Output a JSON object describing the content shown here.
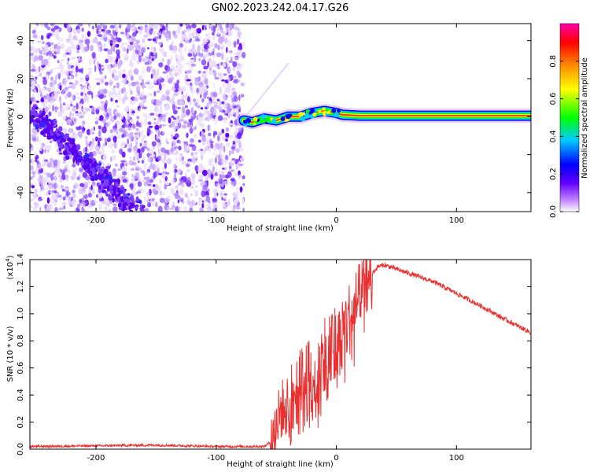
{
  "title": "GN02.2023.242.04.17.G26",
  "colors": {
    "snr_line": "#e83030",
    "colormap": [
      "#ffffff",
      "#cc99ff",
      "#6600ff",
      "#0000ff",
      "#00ffff",
      "#00ff00",
      "#ffff00",
      "#ff8800",
      "#ff0000",
      "#ff00aa"
    ]
  },
  "chart_data": [
    {
      "type": "heatmap",
      "xlabel": "Height of straight line (km)",
      "ylabel": "Frequency (Hz)",
      "xlim": [
        -255,
        162
      ],
      "ylim": [
        -50,
        49
      ],
      "xticks": [
        -200,
        -100,
        0,
        100
      ],
      "yticks": [
        -40,
        -20,
        0,
        20,
        40
      ],
      "colorbar": {
        "label": "Normalized spectral amplitude",
        "range": [
          0.0,
          1.0
        ],
        "ticks": [
          "0.0",
          "0.2",
          "0.4",
          "0.6",
          "0.8"
        ]
      },
      "noise_region_x": [
        -255,
        -77
      ],
      "ridge": {
        "x": [
          -77,
          -70,
          -60,
          -50,
          -40,
          -30,
          -20,
          -10,
          0,
          5,
          20,
          60,
          100,
          162
        ],
        "freq": [
          -2,
          -3,
          -1,
          -2,
          0,
          0,
          2,
          3,
          2,
          1,
          0.5,
          0.5,
          0.5,
          0.5
        ]
      },
      "faint_track": {
        "x": [
          -78,
          -40
        ],
        "freq": [
          -2,
          28
        ]
      },
      "dense_band": {
        "x": [
          -260,
          -165
        ],
        "freq": [
          6,
          -50
        ]
      }
    },
    {
      "type": "line",
      "xlabel": "Height of straight line (km)",
      "ylabel": "SNR (10 * v/v)",
      "yscale_label": "(x10",
      "yscale_exp": "4",
      "xlim": [
        -255,
        162
      ],
      "ylim": [
        0.0,
        1.4
      ],
      "xticks": [
        -200,
        -100,
        0,
        100
      ],
      "yticks": [
        "0.0",
        "0.2",
        "0.4",
        "0.6",
        "0.8",
        "1.0",
        "1.2",
        "1.4"
      ],
      "series": [
        {
          "x": [
            -255,
            -200,
            -150,
            -100,
            -60,
            -55,
            -50,
            -45,
            -40,
            -30,
            -20,
            -10,
            0,
            10,
            20,
            30,
            35,
            40,
            60,
            80,
            100,
            120,
            140,
            162
          ],
          "y": [
            0.02,
            0.025,
            0.03,
            0.02,
            0.02,
            0.05,
            0.2,
            0.3,
            0.35,
            0.45,
            0.55,
            0.65,
            0.78,
            0.95,
            1.15,
            1.3,
            1.35,
            1.36,
            1.3,
            1.24,
            1.15,
            1.06,
            0.96,
            0.86
          ]
        }
      ]
    }
  ]
}
